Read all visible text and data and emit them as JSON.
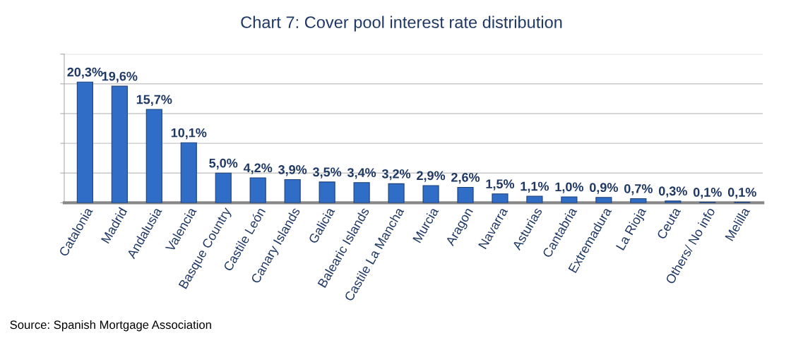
{
  "chart_data": {
    "type": "bar",
    "title": "Chart 7: Cover pool interest rate distribution",
    "categories": [
      "Catalonia",
      "Madrid",
      "Andalusia",
      "Valencia",
      "Basque Country",
      "Castile León",
      "Canary Islands",
      "Galicia",
      "Balearic Islands",
      "Castile La Mancha",
      "Murcia",
      "Aragon",
      "Navarra",
      "Asturias",
      "Cantabria",
      "Extremadura",
      "La Rioja",
      "Ceuta",
      "Others/ No info",
      "Melilla"
    ],
    "values": [
      20.3,
      19.6,
      15.7,
      10.1,
      5.0,
      4.2,
      3.9,
      3.5,
      3.4,
      3.2,
      2.9,
      2.6,
      1.5,
      1.1,
      1.0,
      0.9,
      0.7,
      0.3,
      0.1,
      0.1
    ],
    "value_labels": [
      "20,3%",
      "19,6%",
      "15,7%",
      "10,1%",
      "5,0%",
      "4,2%",
      "3,9%",
      "3,5%",
      "3,4%",
      "3,2%",
      "2,9%",
      "2,6%",
      "1,5%",
      "1,1%",
      "1,0%",
      "0,9%",
      "0,7%",
      "0,3%",
      "0,1%",
      "0,1%"
    ],
    "color": "#2f6dc6",
    "ylim": [
      0,
      25
    ],
    "yticks": [
      {
        "value": 0,
        "label": null
      },
      {
        "value": 5,
        "label": null
      },
      {
        "value": 10,
        "label": null
      },
      {
        "value": 15,
        "label": null
      },
      {
        "value": 20,
        "label": null
      },
      {
        "value": 25,
        "label": null
      }
    ],
    "tick_labels": "x",
    "grid": "y",
    "annotations": [
      "Source: Spanish Mortgage Association"
    ]
  }
}
